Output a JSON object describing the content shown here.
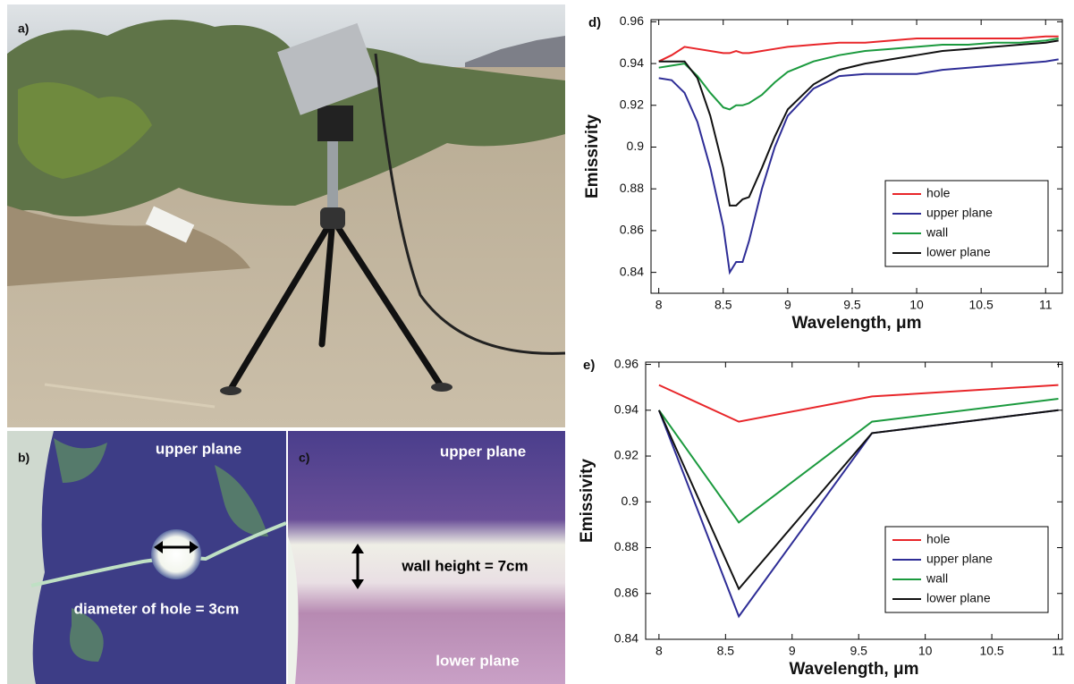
{
  "panels": [
    {
      "label": "a)"
    },
    {
      "label": "b)",
      "annotations": [
        "upper plane",
        "diameter of hole = 3cm"
      ]
    },
    {
      "label": "c)",
      "annotations": [
        "upper plane",
        "wall height = 7cm",
        "lower plane"
      ]
    }
  ],
  "chart_data": [
    {
      "type": "line",
      "label": "d)",
      "y_label": "Emissivity",
      "x_label": "Wavelength, μm",
      "x": [
        8,
        8.1,
        8.2,
        8.3,
        8.4,
        8.5,
        8.55,
        8.6,
        8.65,
        8.7,
        8.8,
        8.9,
        9.0,
        9.2,
        9.4,
        9.6,
        9.8,
        10,
        10.2,
        10.4,
        10.6,
        10.8,
        11,
        11.1
      ],
      "series": [
        {
          "name": "hole",
          "color": "#e8262a",
          "values": [
            0.941,
            0.944,
            0.948,
            0.947,
            0.946,
            0.945,
            0.945,
            0.946,
            0.945,
            0.945,
            0.946,
            0.947,
            0.948,
            0.949,
            0.95,
            0.95,
            0.951,
            0.952,
            0.952,
            0.952,
            0.952,
            0.952,
            0.953,
            0.953
          ]
        },
        {
          "name": "upper plane",
          "color": "#2e2d96",
          "values": [
            0.933,
            0.932,
            0.926,
            0.912,
            0.89,
            0.862,
            0.84,
            0.845,
            0.845,
            0.855,
            0.88,
            0.9,
            0.915,
            0.928,
            0.934,
            0.935,
            0.935,
            0.935,
            0.937,
            0.938,
            0.939,
            0.94,
            0.941,
            0.942
          ]
        },
        {
          "name": "wall",
          "color": "#1b9a3e",
          "values": [
            0.938,
            0.939,
            0.94,
            0.934,
            0.926,
            0.919,
            0.918,
            0.92,
            0.92,
            0.921,
            0.925,
            0.931,
            0.936,
            0.941,
            0.944,
            0.946,
            0.947,
            0.948,
            0.949,
            0.949,
            0.95,
            0.95,
            0.951,
            0.952
          ]
        },
        {
          "name": "lower plane",
          "color": "#111111",
          "values": [
            0.941,
            0.941,
            0.941,
            0.933,
            0.915,
            0.89,
            0.872,
            0.872,
            0.875,
            0.876,
            0.89,
            0.905,
            0.918,
            0.93,
            0.937,
            0.94,
            0.942,
            0.944,
            0.946,
            0.947,
            0.948,
            0.949,
            0.95,
            0.951
          ]
        }
      ],
      "xlim": [
        7.94,
        11.13
      ],
      "ylim": [
        0.83,
        0.961
      ],
      "xticks": [
        8,
        8.5,
        9,
        9.5,
        10,
        10.5,
        11
      ],
      "yticks": [
        0.84,
        0.86,
        0.88,
        0.9,
        0.92,
        0.94,
        0.96
      ],
      "legend": "lower right"
    },
    {
      "type": "line",
      "label": "e)",
      "y_label": "Emissivity",
      "x_label": "Wavelength, μm",
      "x": [
        8,
        8.6,
        9.6,
        11
      ],
      "series": [
        {
          "name": "hole",
          "color": "#e8262a",
          "values": [
            0.951,
            0.935,
            0.946,
            0.951
          ]
        },
        {
          "name": "upper plane",
          "color": "#2e2d96",
          "values": [
            0.94,
            0.85,
            0.93,
            0.94
          ]
        },
        {
          "name": "wall",
          "color": "#1b9a3e",
          "values": [
            0.94,
            0.891,
            0.935,
            0.945
          ]
        },
        {
          "name": "lower plane",
          "color": "#111111",
          "values": [
            0.94,
            0.862,
            0.93,
            0.94
          ]
        }
      ],
      "xlim": [
        7.9,
        11.03
      ],
      "ylim": [
        0.84,
        0.961
      ],
      "xticks": [
        8,
        8.5,
        9,
        9.5,
        10,
        10.5,
        11
      ],
      "yticks": [
        0.84,
        0.86,
        0.88,
        0.9,
        0.92,
        0.94,
        0.96
      ],
      "legend": "lower right"
    }
  ]
}
